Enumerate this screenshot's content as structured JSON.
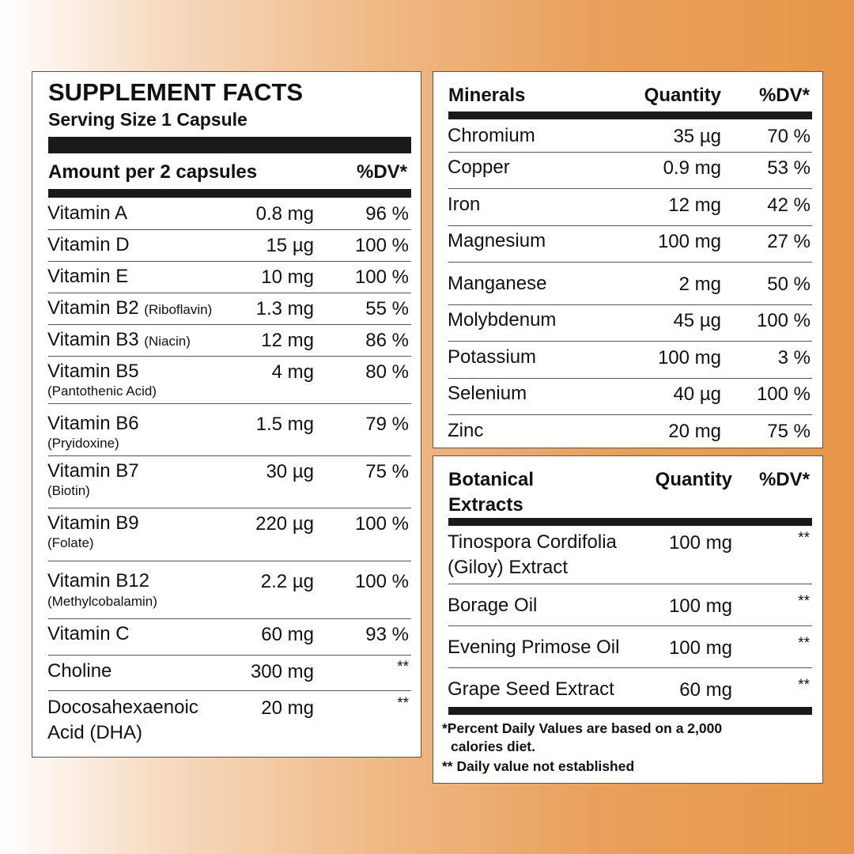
{
  "supplement": {
    "title": "SUPPLEMENT FACTS",
    "serving_size": "Serving Size 1 Capsule",
    "amount_header": "Amount per 2 capsules",
    "dv_header": "%DV*",
    "rows": [
      {
        "name": "Vitamin A",
        "note": "",
        "qty": "0.8 mg",
        "dv": "96 %"
      },
      {
        "name": "Vitamin D",
        "note": "",
        "qty": "15 µg",
        "dv": "100 %"
      },
      {
        "name": "Vitamin E",
        "note": "",
        "qty": "10 mg",
        "dv": "100 %"
      },
      {
        "name": "Vitamin B2",
        "note": "(Riboflavin)",
        "qty": "1.3 mg",
        "dv": "55 %"
      },
      {
        "name": "Vitamin B3",
        "note": "(Niacin)",
        "qty": "12 mg",
        "dv": "86 %"
      },
      {
        "name": "Vitamin B5",
        "note": "(Pantothenic Acid)",
        "qty": "4 mg",
        "dv": "80 %"
      },
      {
        "name": "Vitamin B6",
        "note": "(Pryidoxine)",
        "qty": "1.5 mg",
        "dv": "79 %"
      },
      {
        "name": "Vitamin B7",
        "note": "(Biotin)",
        "qty": "30 µg",
        "dv": "75 %"
      },
      {
        "name": "Vitamin B9",
        "note": "(Folate)",
        "qty": "220 µg",
        "dv": "100 %"
      },
      {
        "name": "Vitamin B12",
        "note": "(Methylcobalamin)",
        "qty": "2.2 µg",
        "dv": "100 %"
      },
      {
        "name": "Vitamin C",
        "note": "",
        "qty": "60 mg",
        "dv": "93 %"
      },
      {
        "name": "Choline",
        "note": "",
        "qty": "300 mg",
        "dv": "**"
      },
      {
        "name": "Docosahexaenoic",
        "name2": "Acid (DHA)",
        "note": "",
        "qty": "20 mg",
        "dv": "**"
      }
    ]
  },
  "minerals": {
    "header": {
      "name": "Minerals",
      "qty": "Quantity",
      "dv": "%DV*"
    },
    "rows": [
      {
        "name": "Chromium",
        "qty": "35 µg",
        "dv": "70 %"
      },
      {
        "name": "Copper",
        "qty": "0.9 mg",
        "dv": "53 %"
      },
      {
        "name": "Iron",
        "qty": "12 mg",
        "dv": "42 %"
      },
      {
        "name": "Magnesium",
        "qty": "100 mg",
        "dv": "27 %"
      },
      {
        "name": "Manganese",
        "qty": "2 mg",
        "dv": "50 %"
      },
      {
        "name": "Molybdenum",
        "qty": "45 µg",
        "dv": "100 %"
      },
      {
        "name": "Potassium",
        "qty": "100 mg",
        "dv": "3 %"
      },
      {
        "name": "Selenium",
        "qty": "40 µg",
        "dv": "100 %"
      },
      {
        "name": "Zinc",
        "qty": "20 mg",
        "dv": "75 %"
      }
    ]
  },
  "botanical": {
    "header": {
      "name_line1": "Botanical",
      "name_line2": "Extracts",
      "qty": "Quantity",
      "dv": "%DV*"
    },
    "rows": [
      {
        "name": "Tinospora Cordifolia",
        "name2": "(Giloy) Extract",
        "qty": "100 mg",
        "dv": "**"
      },
      {
        "name": "Borage Oil",
        "qty": "100 mg",
        "dv": "**"
      },
      {
        "name": "Evening Primose Oil",
        "qty": "100 mg",
        "dv": "**"
      },
      {
        "name": "Grape Seed Extract",
        "qty": "60 mg",
        "dv": "**"
      }
    ],
    "footnote1": "*Percent Daily Values are based on a 2,000",
    "footnote1b": "calories diet.",
    "footnote2": "** Daily value not established"
  }
}
